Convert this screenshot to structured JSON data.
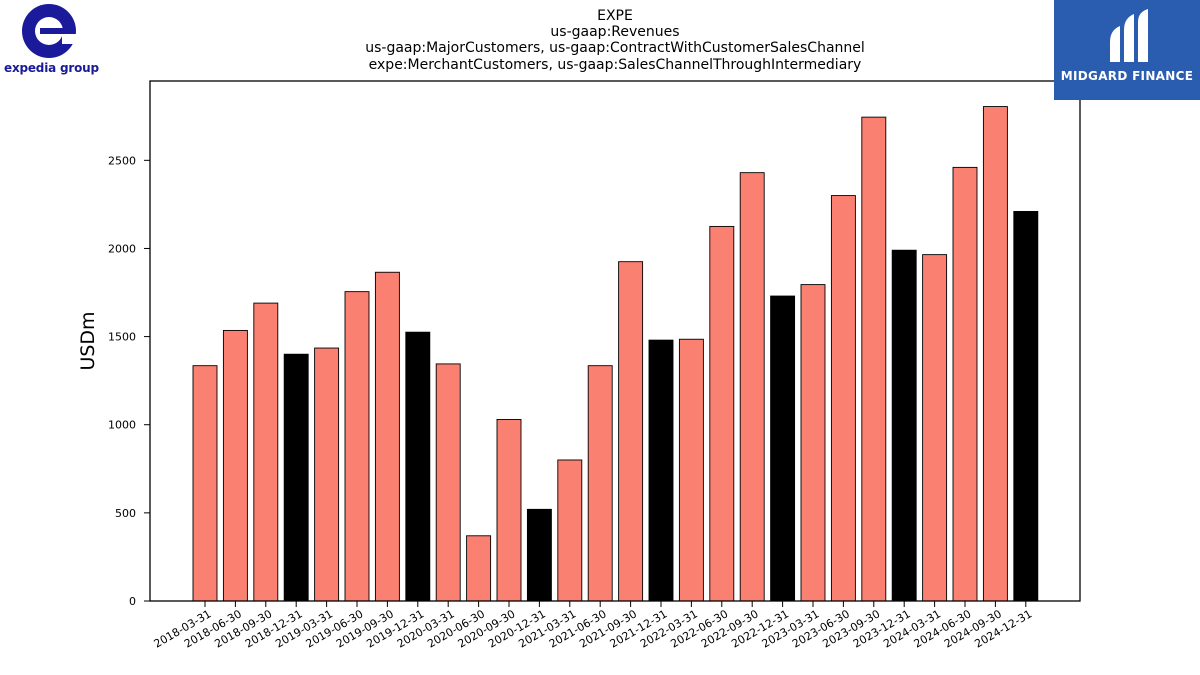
{
  "logos": {
    "left_wordmark": "expedia group",
    "right_wordmark": "MIDGARD FINANCE"
  },
  "colors": {
    "bar_default": "#fa8072",
    "bar_q4": "#000000",
    "right_logo_bg": "#2a5db0",
    "left_logo": "#1b1a9a"
  },
  "chart_data": {
    "type": "bar",
    "title": "EXPE",
    "subtitle_lines": [
      "us-gaap:Revenues",
      "us-gaap:MajorCustomers, us-gaap:ContractWithCustomerSalesChannel",
      "expe:MerchantCustomers, us-gaap:SalesChannelThroughIntermediary"
    ],
    "ylabel": "USDm",
    "xlabel": "",
    "ylim": [
      0,
      2950
    ],
    "yticks": [
      0,
      500,
      1000,
      1500,
      2000,
      2500
    ],
    "grid": false,
    "categories": [
      "2018-03-31",
      "2018-06-30",
      "2018-09-30",
      "2018-12-31",
      "2019-03-31",
      "2019-06-30",
      "2019-09-30",
      "2019-12-31",
      "2020-03-31",
      "2020-06-30",
      "2020-09-30",
      "2020-12-31",
      "2021-03-31",
      "2021-06-30",
      "2021-09-30",
      "2021-12-31",
      "2022-03-31",
      "2022-06-30",
      "2022-09-30",
      "2022-12-31",
      "2023-03-31",
      "2023-06-30",
      "2023-09-30",
      "2023-12-31",
      "2024-03-31",
      "2024-06-30",
      "2024-09-30",
      "2024-12-31"
    ],
    "values": [
      1335,
      1535,
      1690,
      1400,
      1435,
      1755,
      1865,
      1525,
      1345,
      370,
      1030,
      520,
      800,
      1335,
      1925,
      1480,
      1485,
      2125,
      2430,
      1730,
      1795,
      2300,
      2745,
      1990,
      1965,
      2460,
      2805,
      2210
    ],
    "highlight": [
      false,
      false,
      false,
      true,
      false,
      false,
      false,
      true,
      false,
      false,
      false,
      true,
      false,
      false,
      false,
      true,
      false,
      false,
      false,
      true,
      false,
      false,
      false,
      true,
      false,
      false,
      false,
      true
    ]
  }
}
